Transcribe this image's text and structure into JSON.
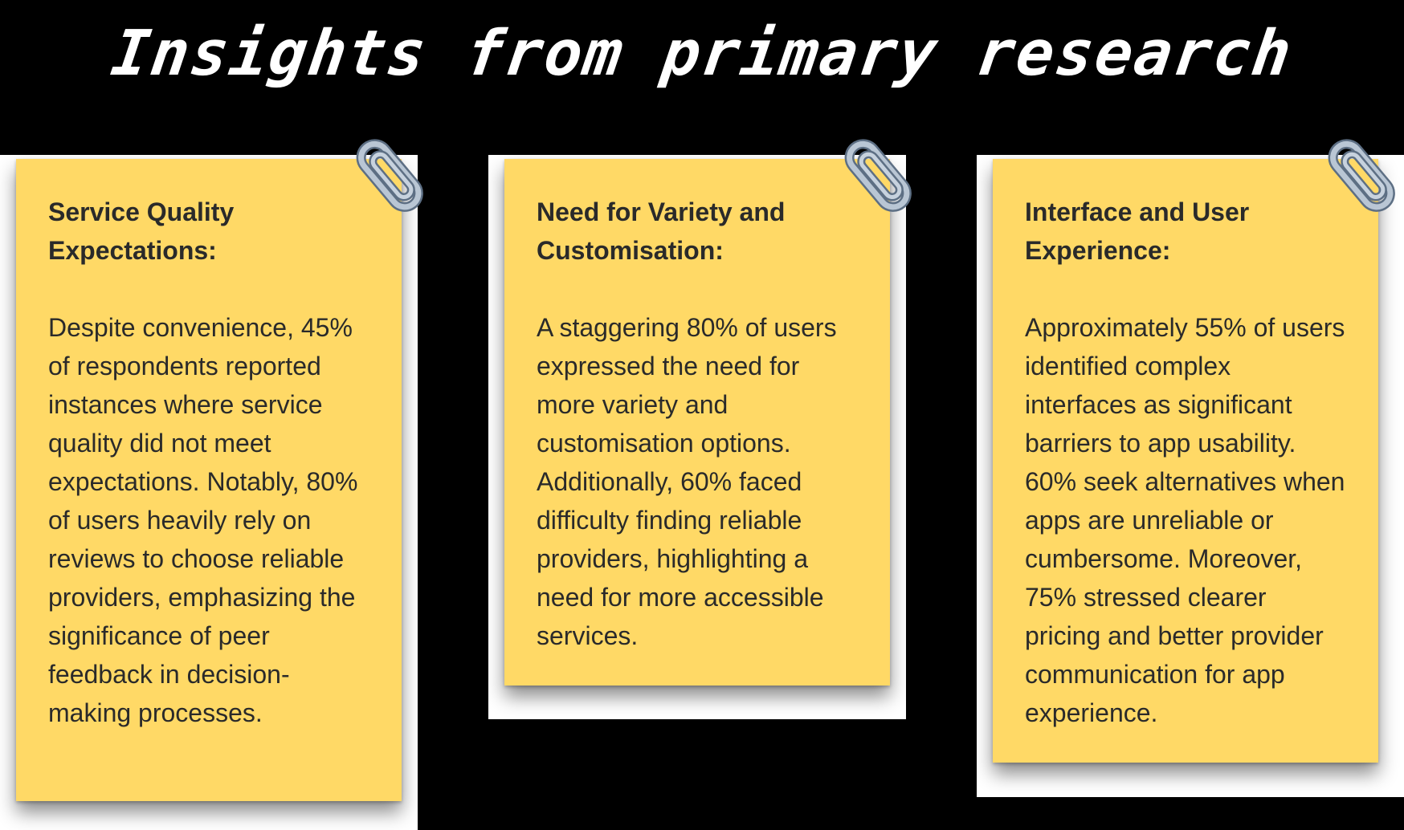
{
  "page": {
    "title": "Insights from primary research"
  },
  "notes": [
    {
      "heading": "Service Quality Expectations:",
      "body": "Despite convenience, 45% of respondents reported instances where service quality did not meet expectations. Notably, 80% of users heavily rely on reviews to choose reliable providers, emphasizing the significance of peer feedback in decision-making processes."
    },
    {
      "heading": "Need for Variety and Customisation:",
      "body": "A staggering 80% of users expressed the need for more variety and customisation options. Additionally,  60% faced difficulty finding reliable providers, highlighting a need for more accessible services."
    },
    {
      "heading": "Interface and User Experience:",
      "body": "Approximately 55% of users identified complex interfaces as significant barriers to app usability. 60% seek alternatives when apps are unreliable or cumbersome. Moreover, 75% stressed clearer pricing and better provider communication for app experience."
    }
  ],
  "icons": {
    "clip": "paperclip-icon"
  },
  "colors": {
    "background": "#000000",
    "note": "#FFD966",
    "text": "#2a2a2a",
    "title": "#ffffff"
  }
}
